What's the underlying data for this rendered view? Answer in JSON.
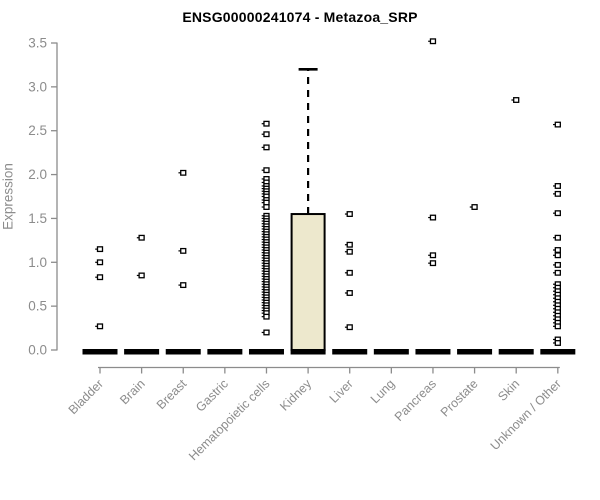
{
  "title": "ENSG00000241074 - Metazoa_SRP",
  "chart_data": {
    "type": "boxplot",
    "title": "ENSG00000241074 - Metazoa_SRP",
    "xlabel": "",
    "ylabel": "Expression",
    "ylim": [
      0.0,
      3.5
    ],
    "yticks": [
      "0.0",
      "0.5",
      "1.0",
      "1.5",
      "2.0",
      "2.5",
      "3.0",
      "3.5"
    ],
    "grid": "off",
    "legend": "none",
    "categories": [
      "Bladder",
      "Brain",
      "Breast",
      "Gastric",
      "Hematopoietic cells",
      "Kidney",
      "Liver",
      "Lung",
      "Pancreas",
      "Prostate",
      "Skin",
      "Unknown / Other"
    ],
    "series": [
      {
        "name": "Bladder",
        "box": {
          "q1": 0,
          "median": 0,
          "q3": 0,
          "whisker_low": 0,
          "whisker_high": 0
        },
        "outliers": [
          1.15,
          1.0,
          0.83,
          0.27
        ]
      },
      {
        "name": "Brain",
        "box": {
          "q1": 0,
          "median": 0,
          "q3": 0,
          "whisker_low": 0,
          "whisker_high": 0
        },
        "outliers": [
          1.28,
          0.85
        ]
      },
      {
        "name": "Breast",
        "box": {
          "q1": 0,
          "median": 0,
          "q3": 0,
          "whisker_low": 0,
          "whisker_high": 0
        },
        "outliers": [
          2.02,
          1.13,
          0.74
        ]
      },
      {
        "name": "Gastric",
        "box": {
          "q1": 0,
          "median": 0,
          "q3": 0,
          "whisker_low": 0,
          "whisker_high": 0
        },
        "outliers": []
      },
      {
        "name": "Hematopoietic cells",
        "box": {
          "q1": 0,
          "median": 0,
          "q3": 0,
          "whisker_low": 0,
          "whisker_high": 0
        },
        "outliers": [
          2.58,
          2.46,
          2.31,
          2.05,
          1.95,
          1.91,
          1.87,
          1.84,
          1.81,
          1.78,
          1.75,
          1.71,
          1.68,
          1.63,
          1.53,
          1.5,
          1.47,
          1.44,
          1.41,
          1.38,
          1.35,
          1.32,
          1.29,
          1.26,
          1.23,
          1.2,
          1.17,
          1.14,
          1.11,
          1.08,
          1.05,
          1.02,
          0.99,
          0.96,
          0.93,
          0.9,
          0.87,
          0.84,
          0.81,
          0.78,
          0.75,
          0.72,
          0.69,
          0.66,
          0.63,
          0.6,
          0.57,
          0.54,
          0.51,
          0.48,
          0.45,
          0.42,
          0.38,
          0.2
        ]
      },
      {
        "name": "Kidney",
        "box": {
          "q1": 0,
          "median": 0,
          "q3": 1.55,
          "whisker_low": 0,
          "whisker_high": 3.2
        },
        "outliers": []
      },
      {
        "name": "Liver",
        "box": {
          "q1": 0,
          "median": 0,
          "q3": 0,
          "whisker_low": 0,
          "whisker_high": 0
        },
        "outliers": [
          1.55,
          1.2,
          1.12,
          0.88,
          0.65,
          0.26
        ]
      },
      {
        "name": "Lung",
        "box": {
          "q1": 0,
          "median": 0,
          "q3": 0,
          "whisker_low": 0,
          "whisker_high": 0
        },
        "outliers": []
      },
      {
        "name": "Pancreas",
        "box": {
          "q1": 0,
          "median": 0,
          "q3": 0,
          "whisker_low": 0,
          "whisker_high": 0
        },
        "outliers": [
          3.52,
          1.51,
          1.08,
          0.99
        ]
      },
      {
        "name": "Prostate",
        "box": {
          "q1": 0,
          "median": 0,
          "q3": 0,
          "whisker_low": 0,
          "whisker_high": 0
        },
        "outliers": [
          1.63
        ]
      },
      {
        "name": "Skin",
        "box": {
          "q1": 0,
          "median": 0,
          "q3": 0,
          "whisker_low": 0,
          "whisker_high": 0
        },
        "outliers": [
          2.85
        ]
      },
      {
        "name": "Unknown / Other",
        "box": {
          "q1": 0,
          "median": 0,
          "q3": 0,
          "whisker_low": 0,
          "whisker_high": 0
        },
        "outliers": [
          2.57,
          1.87,
          1.78,
          1.56,
          1.28,
          1.14,
          1.08,
          0.97,
          0.88,
          0.75,
          0.71,
          0.67,
          0.63,
          0.59,
          0.55,
          0.51,
          0.47,
          0.43,
          0.39,
          0.35,
          0.31,
          0.27,
          0.12,
          0.08
        ]
      }
    ],
    "colors": {
      "box_fill": "#EDE8CD",
      "box_border": "#000000",
      "median": "#000000",
      "whisker": "#000000",
      "outlier_fill": "#ffffff",
      "outlier_border": "#000000",
      "axis_line": "#8c8c8c",
      "tick_label": "#8c8c8c",
      "title_color": "#000000"
    }
  }
}
